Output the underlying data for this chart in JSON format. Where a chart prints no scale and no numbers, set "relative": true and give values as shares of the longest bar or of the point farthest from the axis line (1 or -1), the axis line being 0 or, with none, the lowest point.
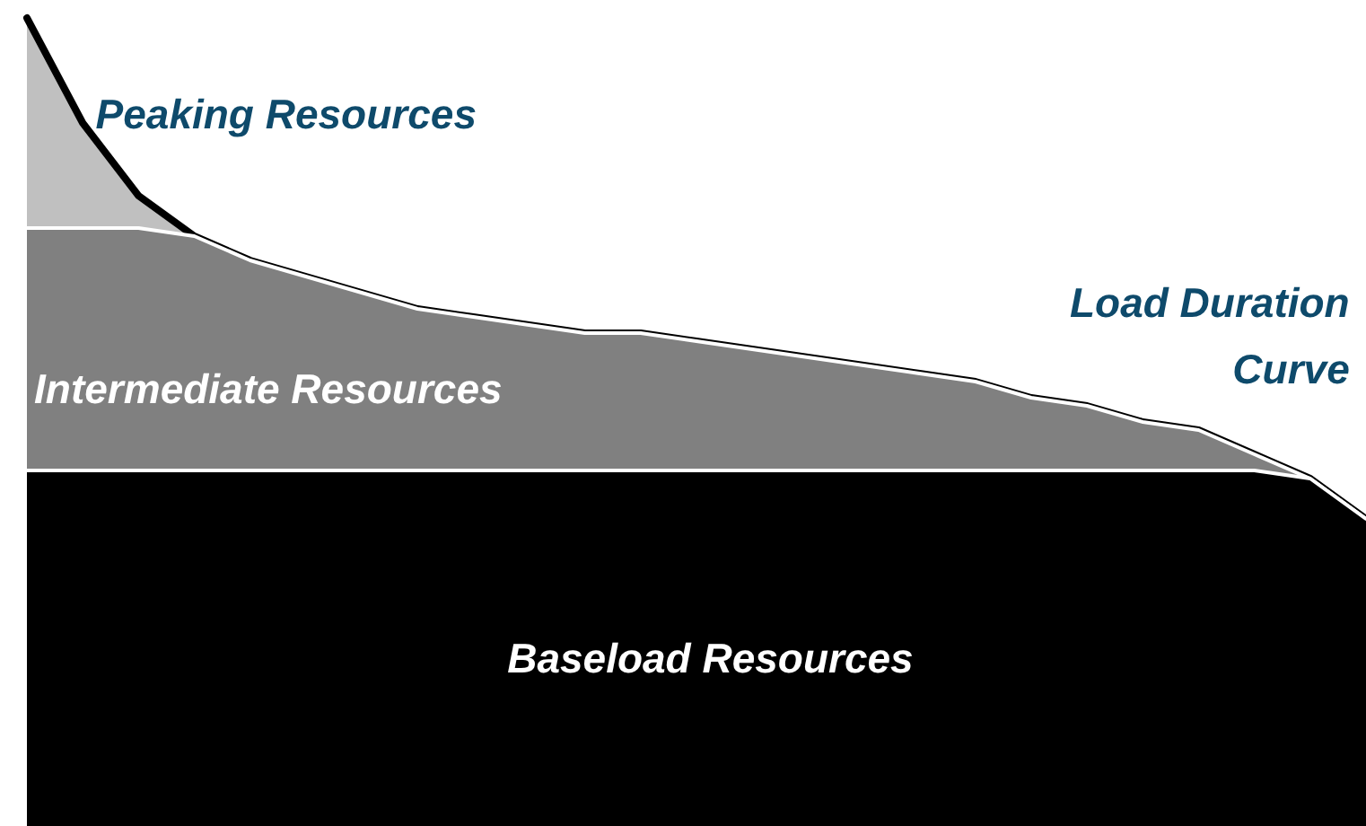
{
  "chart_data": {
    "type": "area",
    "relative": true,
    "stacked": true,
    "legend": false,
    "annotations": [
      "Load Duration Curve"
    ],
    "categories": [
      null,
      null,
      null,
      null,
      null,
      null,
      null,
      null,
      null,
      null,
      null,
      null,
      null,
      null,
      null,
      null,
      null,
      null,
      null,
      null,
      null,
      null,
      null,
      null,
      null
    ],
    "series": [
      {
        "name": "Baseload Resources",
        "color": "#000000",
        "values": [
          0.44,
          0.44,
          0.44,
          0.44,
          0.44,
          0.44,
          0.44,
          0.44,
          0.44,
          0.44,
          0.44,
          0.44,
          0.44,
          0.44,
          0.44,
          0.44,
          0.44,
          0.44,
          0.44,
          0.44,
          0.44,
          0.44,
          0.44,
          0.43,
          0.38
        ]
      },
      {
        "name": "Intermediate Resources",
        "color": "#808080",
        "values": [
          0.3,
          0.3,
          0.3,
          0.29,
          0.26,
          0.24,
          0.22,
          0.2,
          0.19,
          0.18,
          0.17,
          0.17,
          0.16,
          0.15,
          0.14,
          0.13,
          0.12,
          0.11,
          0.09,
          0.08,
          0.06,
          0.05,
          0.02,
          0,
          0
        ]
      },
      {
        "name": "Peaking Resources",
        "color": "#c0c0c0",
        "values": [
          0.26,
          0.13,
          0.04,
          0,
          0,
          0,
          0,
          0,
          0,
          0,
          0,
          0,
          0,
          0,
          0,
          0,
          0,
          0,
          0,
          0,
          0,
          0,
          0,
          0,
          0
        ]
      }
    ]
  }
}
